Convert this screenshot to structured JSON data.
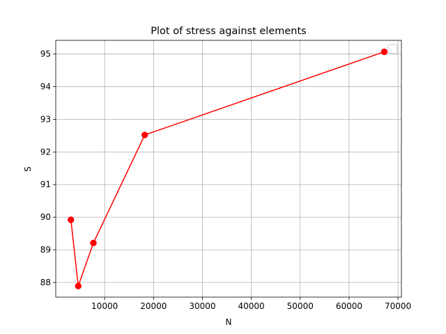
{
  "chart_data": {
    "type": "line",
    "title": "Plot of stress against elements",
    "xlabel": "N",
    "ylabel": "S",
    "xlim": [
      0,
      70700
    ],
    "ylim": [
      87.55,
      95.42
    ],
    "xticks": [
      10000,
      20000,
      30000,
      40000,
      50000,
      60000,
      70000
    ],
    "yticks": [
      88,
      89,
      90,
      91,
      92,
      93,
      94,
      95
    ],
    "grid": true,
    "legend": "top-right",
    "series": [
      {
        "color": "#ff0000",
        "marker": "circle",
        "x": [
          3100,
          4600,
          7700,
          18200,
          67200
        ],
        "y": [
          89.92,
          87.89,
          89.21,
          92.52,
          95.07
        ]
      }
    ]
  }
}
